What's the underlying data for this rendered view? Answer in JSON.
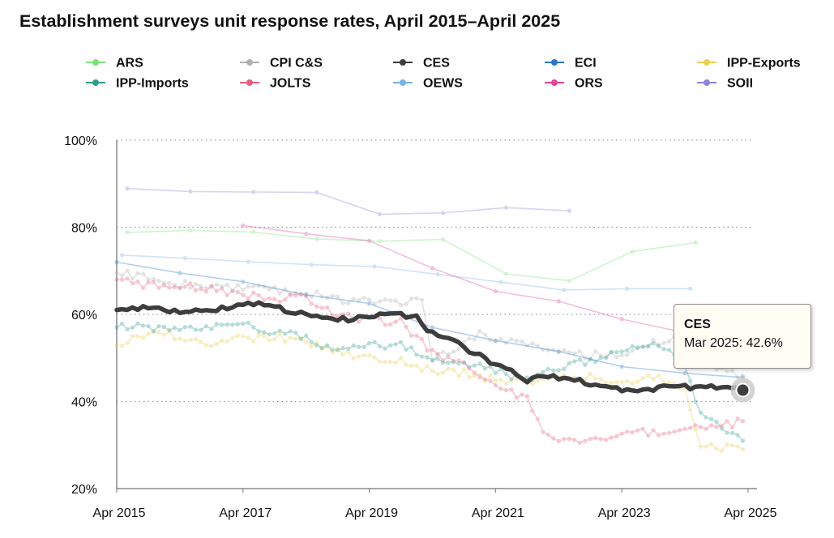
{
  "chart_data": {
    "type": "line",
    "title": "Establishment surveys unit response rates, April 2015–April 2025",
    "xlabel": "",
    "ylabel": "",
    "x_range": [
      "2015-04",
      "2025-04"
    ],
    "x_tick_labels": [
      "Apr 2015",
      "Apr 2017",
      "Apr 2019",
      "Apr 2021",
      "Apr 2023",
      "Apr 2025"
    ],
    "ylim": [
      20,
      100
    ],
    "y_tick_labels": [
      "20%",
      "40%",
      "60%",
      "80%",
      "100%"
    ],
    "grid": "horizontal dotted",
    "legend_position": "top",
    "highlighted_series": "CES",
    "series": [
      {
        "name": "ARS",
        "color": "#7be07b",
        "frequency": "annual",
        "x": [
          "2015-06",
          "2016-06",
          "2017-06",
          "2018-06",
          "2019-06",
          "2020-06",
          "2021-06",
          "2022-06",
          "2023-06",
          "2024-06"
        ],
        "values": [
          78.8,
          79.3,
          78.9,
          77.3,
          76.8,
          77.2,
          69.3,
          67.7,
          74.4,
          76.5
        ]
      },
      {
        "name": "CPI C&S",
        "color": "#b0b0b0",
        "frequency": "monthly",
        "x": [
          "2015-04",
          "2015-10",
          "2016-04",
          "2016-10",
          "2017-04",
          "2017-10",
          "2018-04",
          "2018-10",
          "2019-04",
          "2019-10",
          "2020-02",
          "2020-04",
          "2020-08",
          "2021-02",
          "2021-04",
          "2021-10",
          "2022-04",
          "2022-10",
          "2023-04",
          "2023-10",
          "2024-02",
          "2024-04",
          "2024-10",
          "2025-03"
        ],
        "values": [
          69.5,
          68.5,
          67.0,
          66.5,
          66.0,
          65.5,
          65.0,
          63.5,
          63.0,
          63.0,
          64.0,
          49.5,
          52.0,
          56.0,
          54.0,
          53.0,
          52.0,
          50.5,
          51.0,
          53.5,
          54.5,
          49.0,
          48.0,
          46.0
        ]
      },
      {
        "name": "CES",
        "color": "#3d3d3d",
        "frequency": "monthly",
        "x": [
          "2015-04",
          "2015-09",
          "2016-01",
          "2016-07",
          "2017-01",
          "2017-04",
          "2017-09",
          "2018-01",
          "2018-07",
          "2019-01",
          "2019-07",
          "2020-01",
          "2020-03",
          "2020-05",
          "2020-09",
          "2021-01",
          "2021-04",
          "2021-07",
          "2021-10",
          "2022-01",
          "2022-07",
          "2023-01",
          "2023-04",
          "2023-07",
          "2023-10",
          "2024-01",
          "2024-07",
          "2025-01",
          "2025-03"
        ],
        "values": [
          61.0,
          61.5,
          61.0,
          60.8,
          61.5,
          62.5,
          62.5,
          60.5,
          59.0,
          58.8,
          60.0,
          59.5,
          56.0,
          55.5,
          53.0,
          50.5,
          48.0,
          47.5,
          45.0,
          46.0,
          45.0,
          43.5,
          42.3,
          42.5,
          43.0,
          43.5,
          43.3,
          43.0,
          42.6
        ]
      },
      {
        "name": "ECI",
        "color": "#2a78c8",
        "frequency": "quarterly",
        "x": [
          "2015-04",
          "2016-04",
          "2017-04",
          "2018-04",
          "2019-04",
          "2020-04",
          "2021-04",
          "2022-04",
          "2023-04",
          "2024-04",
          "2025-03"
        ],
        "values": [
          72.0,
          69.5,
          67.5,
          64.5,
          62.5,
          57.0,
          54.0,
          51.5,
          48.0,
          46.5,
          45.5
        ]
      },
      {
        "name": "IPP-Exports",
        "color": "#e8cf50",
        "frequency": "monthly",
        "x": [
          "2015-04",
          "2015-10",
          "2016-04",
          "2016-10",
          "2017-04",
          "2017-10",
          "2018-04",
          "2018-10",
          "2019-04",
          "2019-10",
          "2020-04",
          "2020-10",
          "2021-04",
          "2021-10",
          "2022-04",
          "2022-10",
          "2023-04",
          "2023-10",
          "2024-04",
          "2024-07",
          "2025-03"
        ],
        "values": [
          53.0,
          56.0,
          55.0,
          53.5,
          54.5,
          55.0,
          53.5,
          51.5,
          50.0,
          49.5,
          47.0,
          46.5,
          45.0,
          44.5,
          45.5,
          45.5,
          44.5,
          46.0,
          42.5,
          30.0,
          29.0
        ]
      },
      {
        "name": "IPP-Imports",
        "color": "#2e9c8c",
        "frequency": "monthly",
        "x": [
          "2015-04",
          "2015-10",
          "2016-04",
          "2016-10",
          "2017-04",
          "2017-10",
          "2018-04",
          "2018-10",
          "2019-04",
          "2019-10",
          "2020-04",
          "2020-10",
          "2021-04",
          "2021-10",
          "2022-04",
          "2022-10",
          "2023-04",
          "2023-10",
          "2024-04",
          "2024-07",
          "2025-03"
        ],
        "values": [
          57.0,
          57.0,
          56.0,
          57.5,
          57.5,
          56.0,
          54.5,
          51.5,
          53.0,
          53.0,
          50.0,
          49.0,
          47.0,
          45.0,
          48.0,
          49.5,
          51.0,
          54.0,
          48.0,
          37.0,
          31.0
        ]
      },
      {
        "name": "JOLTS",
        "color": "#e8607e",
        "frequency": "monthly",
        "x": [
          "2015-04",
          "2015-10",
          "2016-04",
          "2016-10",
          "2017-04",
          "2017-10",
          "2018-04",
          "2018-10",
          "2019-04",
          "2019-10",
          "2020-04",
          "2020-10",
          "2021-04",
          "2021-10",
          "2022-01",
          "2022-04",
          "2022-10",
          "2023-04",
          "2023-10",
          "2024-04",
          "2024-10",
          "2025-03"
        ],
        "values": [
          68.0,
          66.5,
          66.5,
          66.0,
          64.5,
          63.5,
          64.0,
          60.0,
          58.5,
          58.5,
          51.0,
          48.5,
          44.0,
          40.5,
          33.0,
          31.0,
          31.5,
          32.5,
          33.0,
          33.5,
          34.0,
          35.5
        ]
      },
      {
        "name": "OEWS",
        "color": "#7ab2e0",
        "frequency": "semiannual",
        "x": [
          "2015-05",
          "2016-05",
          "2017-05",
          "2018-05",
          "2019-05",
          "2020-05",
          "2021-05",
          "2022-05",
          "2023-05",
          "2024-05"
        ],
        "values": [
          73.6,
          72.9,
          72.1,
          71.4,
          71.0,
          69.2,
          67.4,
          65.6,
          65.9,
          65.9
        ]
      },
      {
        "name": "ORS",
        "color": "#e0489a",
        "frequency": "annual",
        "x": [
          "2017-04",
          "2018-04",
          "2019-04",
          "2020-04",
          "2021-04",
          "2022-04",
          "2023-04",
          "2024-04"
        ],
        "values": [
          80.4,
          78.5,
          76.9,
          70.6,
          65.3,
          63.0,
          58.9,
          55.8
        ]
      },
      {
        "name": "SOII",
        "color": "#8a85d8",
        "frequency": "annual",
        "x": [
          "2015-06",
          "2016-06",
          "2017-06",
          "2018-06",
          "2019-06",
          "2020-06",
          "2021-06",
          "2022-06"
        ],
        "values": [
          88.9,
          88.2,
          88.1,
          88.0,
          83.0,
          83.3,
          84.5,
          83.8
        ]
      }
    ],
    "tooltip": {
      "series": "CES",
      "text": "Mar 2025: 42.6%",
      "x": "2025-03",
      "value": 42.6
    }
  }
}
